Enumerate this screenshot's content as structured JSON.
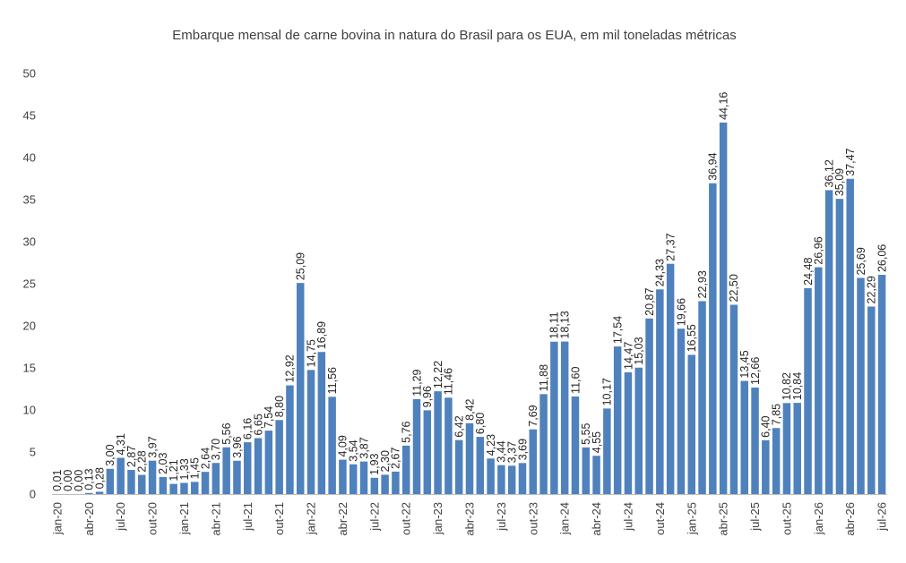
{
  "chart_data": {
    "type": "bar",
    "title": "Embarque mensal de carne bovina in natura do Brasil para os EUA, em mil toneladas métricas",
    "xlabel": "",
    "ylabel": "",
    "ylim": [
      0,
      50
    ],
    "yticks": [
      0,
      5,
      10,
      15,
      20,
      25,
      30,
      35,
      40,
      45,
      50
    ],
    "grid": false,
    "legend": "none",
    "bar_color": "#4F81BD",
    "categories": [
      "jan-20",
      "fev-20",
      "mar-20",
      "abr-20",
      "mai-20",
      "jun-20",
      "jul-20",
      "ago-20",
      "set-20",
      "out-20",
      "nov-20",
      "dez-20",
      "jan-21",
      "fev-21",
      "mar-21",
      "abr-21",
      "mai-21",
      "jun-21",
      "jul-21",
      "ago-21",
      "set-21",
      "out-21",
      "nov-21",
      "dez-21",
      "jan-22",
      "fev-22",
      "mar-22",
      "abr-22",
      "mai-22",
      "jun-22",
      "jul-22",
      "ago-22",
      "set-22",
      "out-22",
      "nov-22",
      "dez-22",
      "jan-23",
      "fev-23",
      "mar-23",
      "abr-23",
      "mai-23",
      "jun-23",
      "jul-23",
      "ago-23",
      "set-23",
      "out-23",
      "nov-23",
      "dez-23",
      "jan-24",
      "fev-24",
      "mar-24",
      "abr-24",
      "mai-24",
      "jun-24",
      "jul-24",
      "ago-24",
      "set-24",
      "out-24",
      "nov-24",
      "dez-24",
      "jan-25",
      "fev-25",
      "mar-25",
      "abr-25",
      "mai-25",
      "jun-25",
      "jul-25",
      "ago-25",
      "set-25",
      "out-25",
      "nov-25",
      "dez-25",
      "jan-26",
      "fev-26",
      "mar-26",
      "abr-26",
      "mai-26",
      "jun-26",
      "jul-26"
    ],
    "xtick_labels": [
      "jan-20",
      "abr-20",
      "jul-20",
      "out-20",
      "jan-21",
      "abr-21",
      "jul-21",
      "out-21",
      "jan-22",
      "abr-22",
      "jul-22",
      "out-22",
      "jan-23",
      "abr-23",
      "jul-23",
      "out-23",
      "jan-24",
      "abr-24",
      "jul-24",
      "out-24",
      "jan-25",
      "abr-25",
      "jul-25",
      "out-25",
      "jan-26",
      "abr-26",
      "jul-26"
    ],
    "values": [
      0.01,
      0.0,
      0.0,
      0.13,
      0.28,
      3.0,
      4.31,
      2.87,
      2.28,
      3.97,
      2.03,
      1.21,
      1.33,
      1.45,
      2.64,
      3.7,
      5.56,
      3.96,
      6.16,
      6.65,
      7.54,
      8.8,
      12.92,
      25.09,
      14.75,
      16.89,
      11.56,
      4.09,
      3.54,
      3.87,
      1.93,
      2.3,
      2.67,
      5.76,
      11.29,
      9.96,
      12.22,
      11.46,
      6.42,
      8.42,
      6.8,
      4.23,
      3.44,
      3.37,
      3.69,
      7.69,
      11.88,
      18.11,
      18.13,
      11.6,
      5.55,
      4.55,
      10.17,
      17.54,
      14.47,
      15.03,
      20.87,
      24.33,
      27.37,
      19.66,
      16.55,
      22.93,
      36.94,
      44.16,
      22.5,
      13.45,
      12.66,
      6.4,
      7.85,
      10.82,
      10.84,
      24.48,
      26.96,
      36.12,
      35.09,
      37.47,
      25.69,
      22.29,
      26.06
    ],
    "data_labels": [
      "0,01",
      "0,00",
      "0,00",
      "0,13",
      "0,28",
      "3,00",
      "4,31",
      "2,87",
      "2,28",
      "3,97",
      "2,03",
      "1,21",
      "1,33",
      "1,45",
      "2,64",
      "3,70",
      "5,56",
      "3,96",
      "6,16",
      "6,65",
      "7,54",
      "8,80",
      "12,92",
      "25,09",
      "14,75",
      "16,89",
      "11,56",
      "4,09",
      "3,54",
      "3,87",
      "1,93",
      "2,30",
      "2,67",
      "5,76",
      "11,29",
      "9,96",
      "12,22",
      "11,46",
      "6,42",
      "8,42",
      "6,80",
      "4,23",
      "3,44",
      "3,37",
      "3,69",
      "7,69",
      "11,88",
      "18,11",
      "18,13",
      "11,60",
      "5,55",
      "4,55",
      "10,17",
      "17,54",
      "14,47",
      "15,03",
      "20,87",
      "24,33",
      "27,37",
      "19,66",
      "16,55",
      "22,93",
      "36,94",
      "44,16",
      "22,50",
      "13,45",
      "12,66",
      "6,40",
      "7,85",
      "10,82",
      "10,84",
      "24,48",
      "26,96",
      "36,12",
      "35,09",
      "37,47",
      "25,69",
      "22,29",
      "26,06"
    ]
  }
}
